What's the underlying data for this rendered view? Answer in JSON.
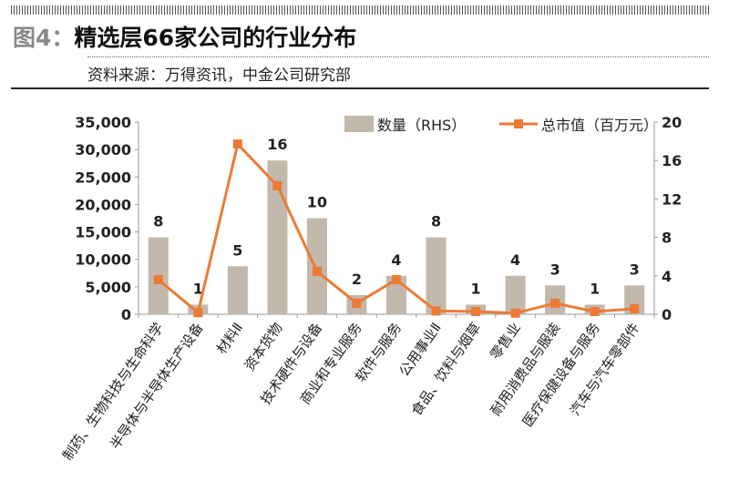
{
  "header": {
    "figure_label": "图4：",
    "title": "精选层66家公司的行业分布",
    "source": "资料来源：万得资讯，中金公司研究部"
  },
  "chart_data": {
    "type": "bar+line",
    "categories": [
      "制药、生物科技与生命科学",
      "半导体与半导体生产设备",
      "材料Ⅱ",
      "资本货物",
      "技术硬件与设备",
      "商业和专业服务",
      "软件与服务",
      "公用事业Ⅱ",
      "食品、饮料与烟草",
      "零售业",
      "耐用消费品与服装",
      "医疗保健设备与服务",
      "汽车与汽车零部件"
    ],
    "series": [
      {
        "name": "数量（RHS）",
        "type": "bar",
        "axis": "right",
        "color": "#c2b8ab",
        "values": [
          8,
          1,
          5,
          16,
          10,
          2,
          4,
          8,
          1,
          4,
          3,
          1,
          3
        ]
      },
      {
        "name": "总市值（百万元）",
        "type": "line",
        "axis": "left",
        "color": "#ec7a35",
        "values": [
          6300,
          300,
          31000,
          23400,
          7800,
          2000,
          6300,
          600,
          500,
          200,
          2000,
          500,
          1000
        ]
      }
    ],
    "left_axis": {
      "ylim": [
        0,
        35000
      ],
      "ticks": [
        "0",
        "5,000",
        "10,000",
        "15,000",
        "20,000",
        "25,000",
        "30,000",
        "35,000"
      ]
    },
    "right_axis": {
      "ylim": [
        0,
        20
      ],
      "ticks": [
        "0",
        "4",
        "8",
        "12",
        "16",
        "20"
      ]
    },
    "legend_placement": "top-right",
    "grid": false
  }
}
